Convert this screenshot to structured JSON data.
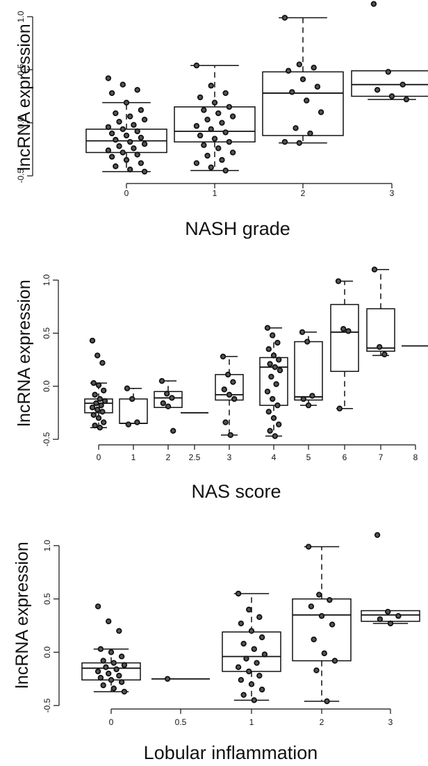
{
  "chart_data": [
    {
      "type": "box",
      "title": "",
      "xlabel": "NASH grade",
      "ylabel": "lncRNA expression",
      "ylim": [
        -0.5,
        1.0
      ],
      "yticks": [
        -0.5,
        0.0,
        0.5,
        1.0
      ],
      "ytick_labels": [
        "-0.5",
        "0.0",
        "0.5",
        "1.0"
      ],
      "categories": [
        "0",
        "1",
        "2",
        "3"
      ],
      "boxes": [
        {
          "category": "0",
          "q1": -0.28,
          "median": -0.17,
          "q3": -0.06,
          "whisker_low": -0.46,
          "whisker_high": 0.19,
          "points": [
            0.42,
            0.36,
            0.31,
            0.28,
            0.19,
            0.12,
            0.09,
            0.06,
            0.03,
            0.01,
            -0.02,
            -0.04,
            -0.06,
            -0.08,
            -0.1,
            -0.12,
            -0.14,
            -0.16,
            -0.18,
            -0.2,
            -0.22,
            -0.24,
            -0.26,
            -0.28,
            -0.3,
            -0.32,
            -0.35,
            -0.38,
            -0.41,
            -0.44,
            -0.46
          ]
        },
        {
          "category": "1",
          "q1": -0.18,
          "median": -0.08,
          "q3": 0.15,
          "whisker_low": -0.45,
          "whisker_high": 0.54,
          "points": [
            0.54,
            0.35,
            0.28,
            0.24,
            0.19,
            0.15,
            0.12,
            0.09,
            0.06,
            0.03,
            0.0,
            -0.03,
            -0.06,
            -0.09,
            -0.12,
            -0.15,
            -0.18,
            -0.21,
            -0.24,
            -0.28,
            -0.31,
            -0.35,
            -0.38,
            -0.42,
            -0.45
          ]
        },
        {
          "category": "2",
          "q1": -0.12,
          "median": 0.28,
          "q3": 0.48,
          "whisker_low": -0.19,
          "whisker_high": 0.99,
          "points": [
            0.99,
            0.55,
            0.52,
            0.49,
            0.41,
            0.34,
            0.29,
            0.21,
            0.1,
            -0.05,
            -0.1,
            -0.18,
            -0.19
          ]
        },
        {
          "category": "3",
          "q1": 0.25,
          "median": 0.36,
          "q3": 0.49,
          "whisker_low": 0.22,
          "whisker_high": 0.49,
          "points": [
            1.12,
            0.48,
            0.36,
            0.31,
            0.25,
            0.22
          ]
        }
      ]
    },
    {
      "type": "box",
      "title": "",
      "xlabel": "NAS score",
      "ylabel": "lncRNA expression",
      "ylim": [
        -0.5,
        1.0
      ],
      "yticks": [
        -0.5,
        0.0,
        0.5,
        1.0
      ],
      "ytick_labels": [
        "-0.5",
        "0.0",
        "0.5",
        "1.0"
      ],
      "categories": [
        "0",
        "1",
        "2",
        "2.5",
        "3",
        "4",
        "5",
        "6",
        "7",
        "8"
      ],
      "boxes": [
        {
          "category": "0",
          "q1": -0.25,
          "median": -0.16,
          "q3": -0.12,
          "whisker_low": -0.39,
          "whisker_high": 0.03,
          "points": [
            0.43,
            0.29,
            0.22,
            0.03,
            0.01,
            -0.04,
            -0.08,
            -0.12,
            -0.14,
            -0.16,
            -0.18,
            -0.2,
            -0.22,
            -0.24,
            -0.27,
            -0.3,
            -0.34,
            -0.37,
            -0.39
          ]
        },
        {
          "category": "1",
          "q1": -0.35,
          "median": -0.35,
          "q3": -0.12,
          "whisker_low": -0.35,
          "whisker_high": -0.02,
          "points": [
            -0.02,
            -0.12,
            -0.34,
            -0.36
          ]
        },
        {
          "category": "2",
          "q1": -0.2,
          "median": -0.11,
          "q3": -0.05,
          "whisker_low": -0.2,
          "whisker_high": 0.05,
          "points": [
            0.05,
            -0.07,
            -0.11,
            -0.16,
            -0.19,
            -0.42
          ]
        },
        {
          "category": "2.5",
          "q1": -0.25,
          "median": -0.25,
          "q3": -0.25,
          "whisker_low": -0.25,
          "whisker_high": -0.25,
          "points": []
        },
        {
          "category": "3",
          "q1": -0.13,
          "median": -0.08,
          "q3": 0.11,
          "whisker_low": -0.46,
          "whisker_high": 0.28,
          "points": [
            0.28,
            0.11,
            0.04,
            -0.03,
            -0.08,
            -0.12,
            -0.34,
            -0.46
          ]
        },
        {
          "category": "4",
          "q1": -0.18,
          "median": 0.18,
          "q3": 0.27,
          "whisker_low": -0.47,
          "whisker_high": 0.55,
          "points": [
            0.55,
            0.48,
            0.41,
            0.35,
            0.29,
            0.25,
            0.21,
            0.18,
            0.15,
            0.09,
            0.02,
            -0.05,
            -0.12,
            -0.18,
            -0.24,
            -0.3,
            -0.36,
            -0.42,
            -0.47
          ]
        },
        {
          "category": "5",
          "q1": -0.13,
          "median": -0.1,
          "q3": 0.42,
          "whisker_low": -0.18,
          "whisker_high": 0.51,
          "points": [
            0.51,
            0.42,
            -0.09,
            -0.12,
            -0.18
          ]
        },
        {
          "category": "6",
          "q1": 0.14,
          "median": 0.51,
          "q3": 0.77,
          "whisker_low": -0.21,
          "whisker_high": 0.99,
          "points": [
            0.99,
            0.54,
            0.52,
            -0.21
          ]
        },
        {
          "category": "7",
          "q1": 0.33,
          "median": 0.36,
          "q3": 0.73,
          "whisker_low": 0.29,
          "whisker_high": 1.1,
          "points": [
            1.1,
            0.37,
            0.3
          ]
        },
        {
          "category": "8",
          "q1": 0.38,
          "median": 0.38,
          "q3": 0.38,
          "whisker_low": 0.38,
          "whisker_high": 0.38,
          "points": []
        }
      ]
    },
    {
      "type": "box",
      "title": "",
      "xlabel": "Lobular inflammation",
      "ylabel": "lncRNA expression",
      "ylim": [
        -0.5,
        1.0
      ],
      "yticks": [
        -0.5,
        0.0,
        0.5,
        1.0
      ],
      "ytick_labels": [
        "-0.5",
        "0.0",
        "0.5",
        "1.0"
      ],
      "categories": [
        "0",
        "0.5",
        "1",
        "2",
        "3"
      ],
      "boxes": [
        {
          "category": "0",
          "q1": -0.26,
          "median": -0.15,
          "q3": -0.1,
          "whisker_low": -0.37,
          "whisker_high": 0.03,
          "points": [
            0.43,
            0.29,
            0.2,
            0.03,
            0.0,
            -0.04,
            -0.08,
            -0.1,
            -0.12,
            -0.14,
            -0.16,
            -0.18,
            -0.2,
            -0.22,
            -0.24,
            -0.26,
            -0.28,
            -0.31,
            -0.34,
            -0.37
          ]
        },
        {
          "category": "0.5",
          "q1": -0.25,
          "median": -0.25,
          "q3": -0.25,
          "whisker_low": -0.25,
          "whisker_high": -0.25,
          "points": [
            -0.25
          ]
        },
        {
          "category": "1",
          "q1": -0.18,
          "median": -0.04,
          "q3": 0.19,
          "whisker_low": -0.45,
          "whisker_high": 0.55,
          "points": [
            0.55,
            0.4,
            0.33,
            0.27,
            0.2,
            0.14,
            0.08,
            0.03,
            -0.02,
            -0.06,
            -0.1,
            -0.14,
            -0.18,
            -0.22,
            -0.26,
            -0.3,
            -0.35,
            -0.4,
            -0.45
          ]
        },
        {
          "category": "2",
          "q1": -0.08,
          "median": 0.35,
          "q3": 0.5,
          "whisker_low": -0.46,
          "whisker_high": 0.99,
          "points": [
            0.99,
            0.54,
            0.49,
            0.43,
            0.34,
            0.26,
            0.12,
            -0.01,
            -0.08,
            -0.17,
            -0.46
          ]
        },
        {
          "category": "3",
          "q1": 0.29,
          "median": 0.35,
          "q3": 0.39,
          "whisker_low": 0.27,
          "whisker_high": 0.39,
          "points": [
            1.1,
            0.38,
            0.34,
            0.31,
            0.27
          ]
        }
      ]
    }
  ]
}
